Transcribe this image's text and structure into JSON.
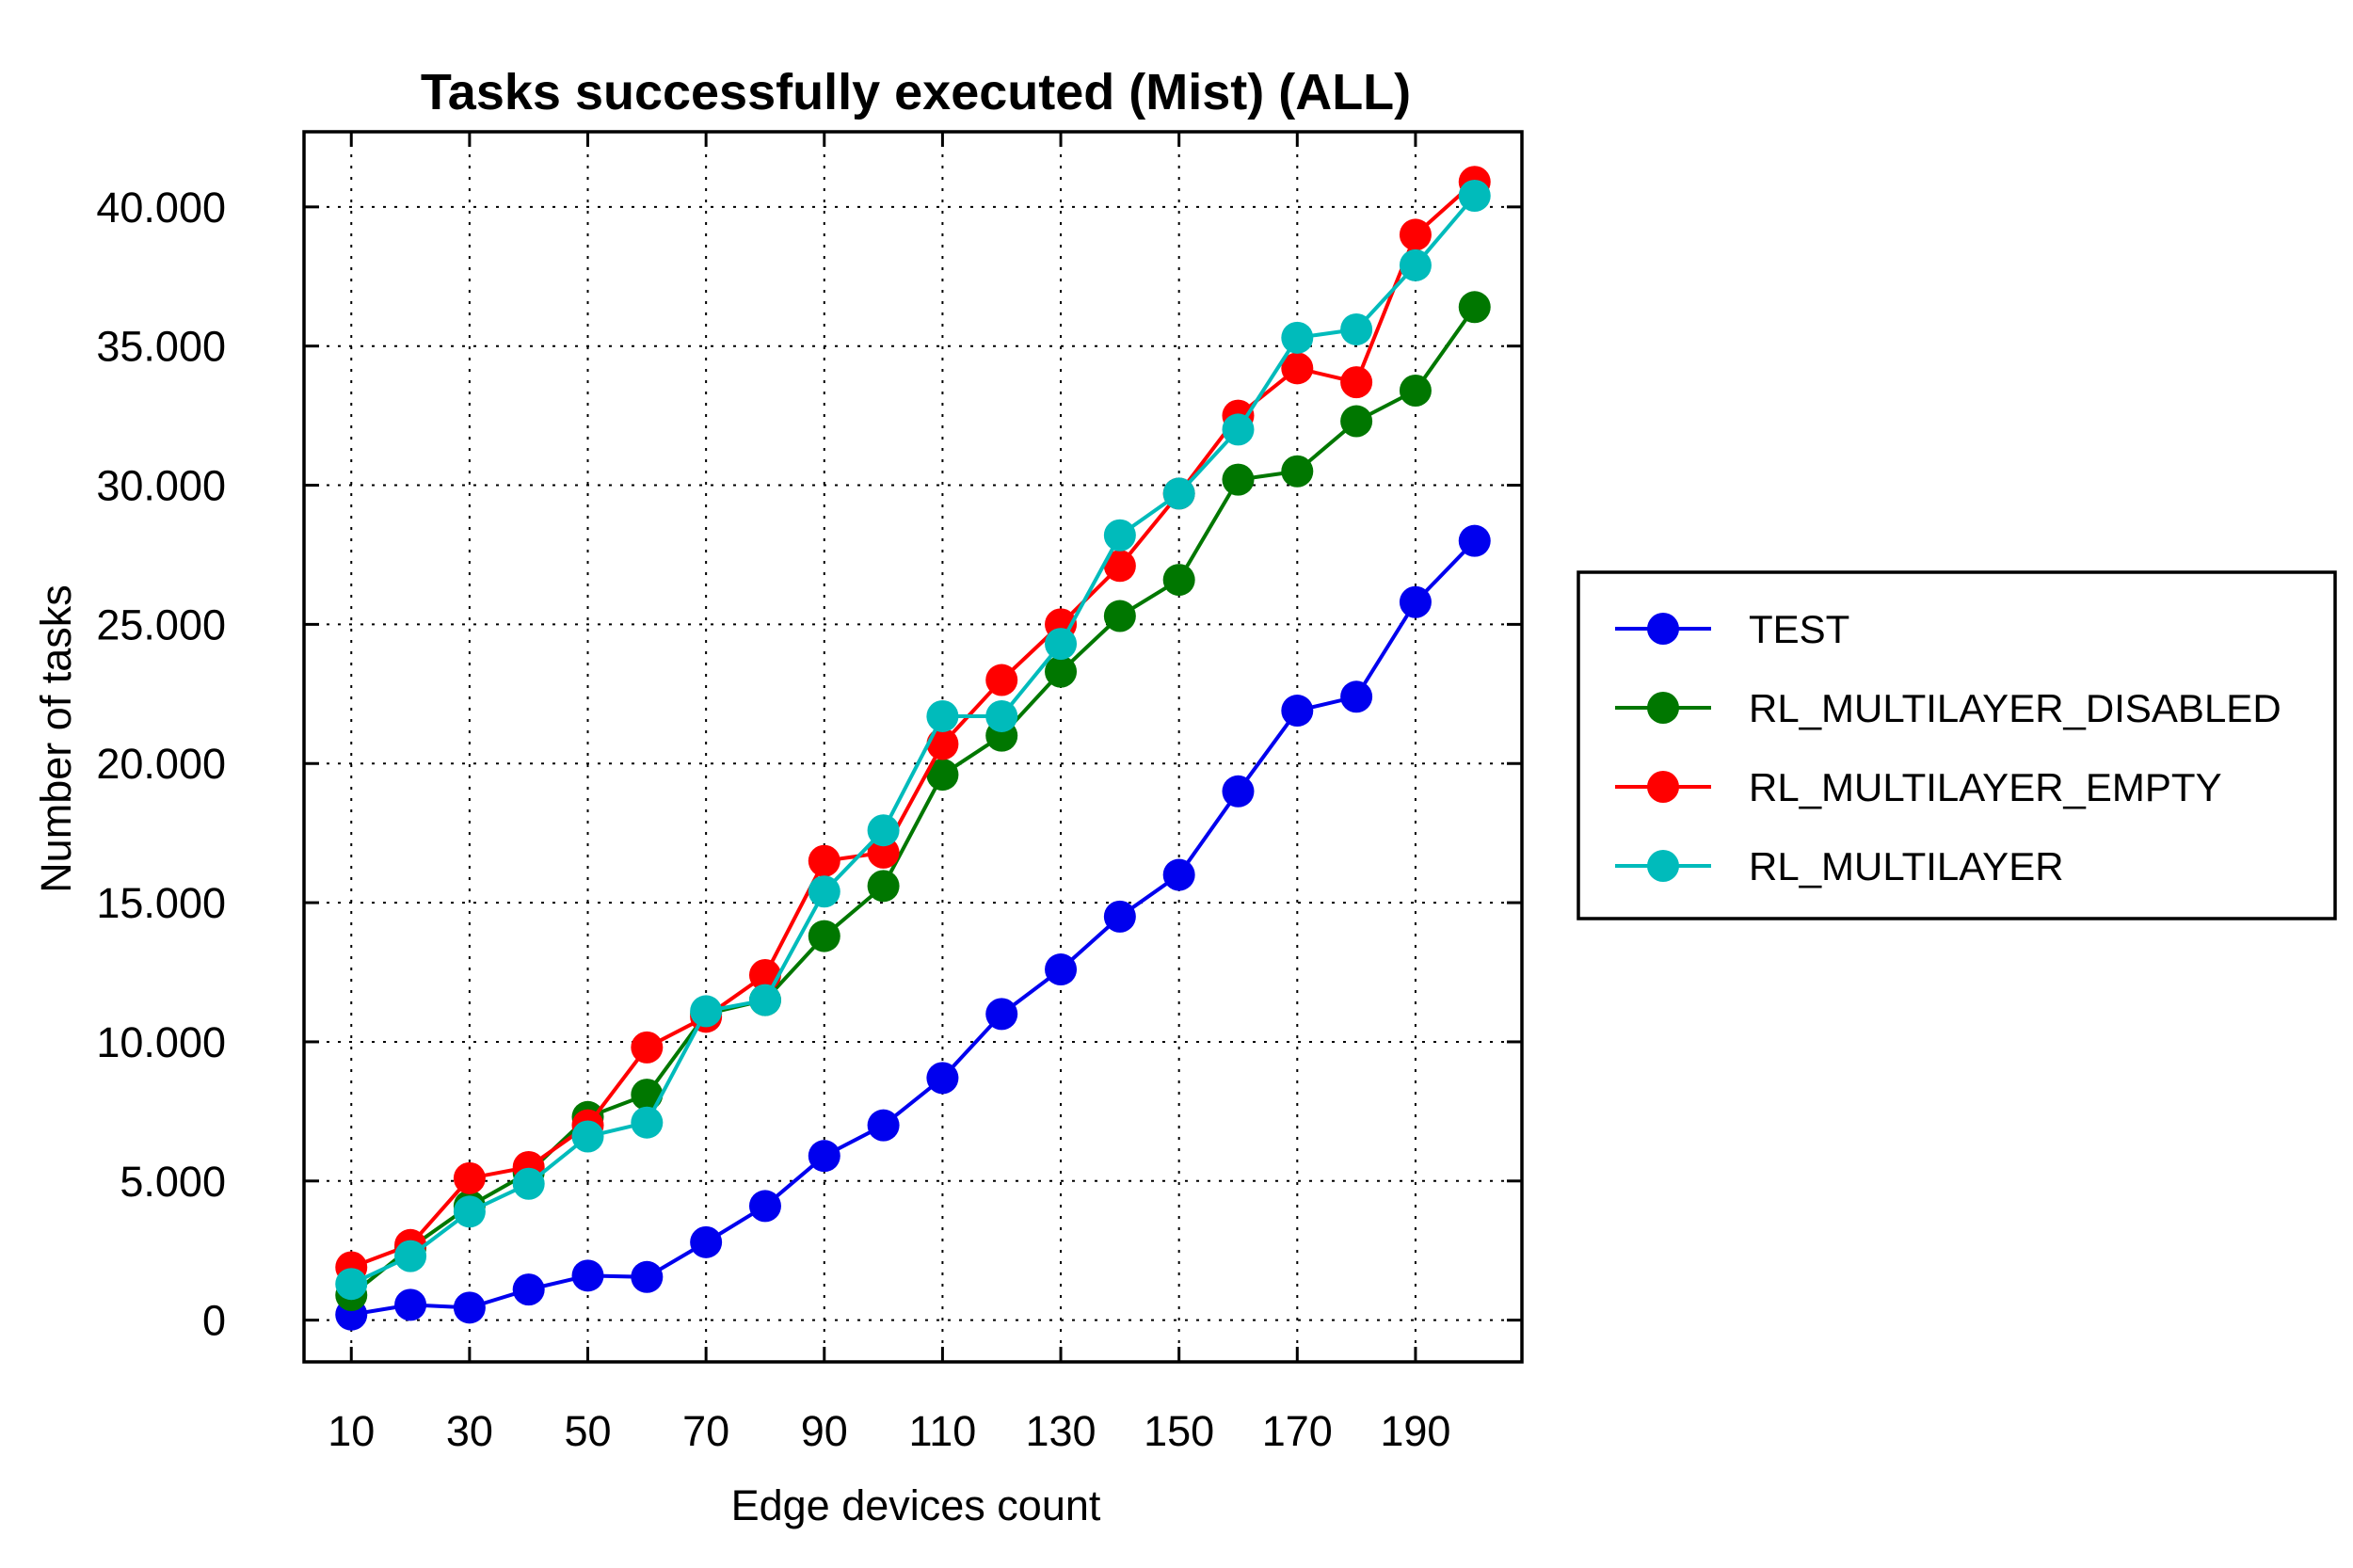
{
  "chart_data": {
    "type": "line",
    "title": "Tasks successfully executed (Mist) (ALL)",
    "xlabel": "Edge devices count",
    "ylabel": "Number of tasks",
    "x": [
      10,
      20,
      30,
      40,
      50,
      60,
      70,
      80,
      90,
      100,
      110,
      120,
      130,
      140,
      150,
      160,
      170,
      180,
      190,
      200
    ],
    "xticks": [
      10,
      30,
      50,
      70,
      90,
      110,
      130,
      150,
      170,
      190
    ],
    "xtick_labels": [
      "10",
      "30",
      "50",
      "70",
      "90",
      "110",
      "130",
      "150",
      "170",
      "190"
    ],
    "yticks": [
      0,
      5000,
      10000,
      15000,
      20000,
      25000,
      30000,
      35000,
      40000
    ],
    "ytick_labels": [
      "0",
      "5.000",
      "10.000",
      "15.000",
      "20.000",
      "25.000",
      "30.000",
      "35.000",
      "40.000"
    ],
    "xlim": [
      2,
      208
    ],
    "ylim": [
      -1500,
      42700
    ],
    "grid": true,
    "legend_position": "outside-right",
    "series": [
      {
        "name": "TEST",
        "color": "#0000ee",
        "values": [
          200,
          550,
          450,
          1100,
          1600,
          1550,
          2800,
          4100,
          5900,
          7000,
          8700,
          11000,
          12600,
          14500,
          16000,
          19000,
          21900,
          22400,
          25800,
          28000
        ]
      },
      {
        "name": "RL_MULTILAYER_DISABLED",
        "color": "#007700",
        "values": [
          900,
          2600,
          4100,
          5300,
          7300,
          8100,
          11000,
          11500,
          13800,
          15600,
          19600,
          21000,
          23300,
          25300,
          26600,
          30200,
          30500,
          32300,
          33400,
          36400
        ]
      },
      {
        "name": "RL_MULTILAYER_EMPTY",
        "color": "#ff0000",
        "values": [
          1900,
          2700,
          5100,
          5500,
          7000,
          9800,
          10900,
          12400,
          16500,
          16800,
          20700,
          23000,
          25000,
          27100,
          29700,
          32500,
          34200,
          33700,
          39000,
          40900
        ]
      },
      {
        "name": "RL_MULTILAYER",
        "color": "#00bbbb",
        "values": [
          1300,
          2300,
          3900,
          4900,
          6600,
          7100,
          11100,
          11500,
          15400,
          17600,
          21700,
          21700,
          24300,
          28200,
          29700,
          32000,
          35300,
          35600,
          37900,
          40400
        ]
      }
    ]
  }
}
